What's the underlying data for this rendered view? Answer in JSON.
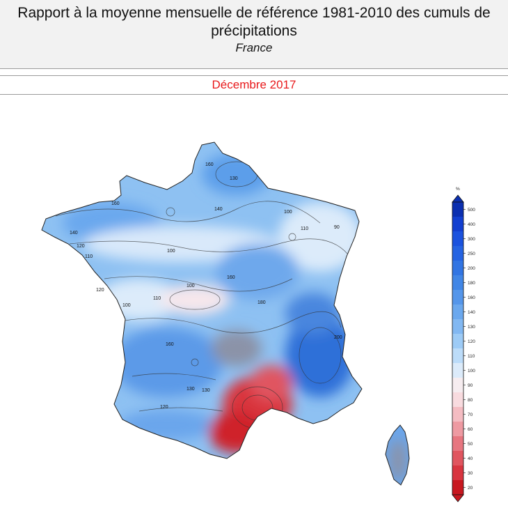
{
  "header": {
    "title": "Rapport à la moyenne mensuelle de référence 1981-2010 des cumuls de précipitations",
    "subtitle": "France"
  },
  "period": "Décembre 2017",
  "legend": {
    "unit": "%",
    "levels": [
      {
        "label": "500",
        "color": "#0b2fb0"
      },
      {
        "label": "400",
        "color": "#123fd0"
      },
      {
        "label": "300",
        "color": "#1b52de"
      },
      {
        "label": "250",
        "color": "#2563e2"
      },
      {
        "label": "200",
        "color": "#3275e3"
      },
      {
        "label": "180",
        "color": "#4186e6"
      },
      {
        "label": "160",
        "color": "#5596ea"
      },
      {
        "label": "140",
        "color": "#6ba8ee"
      },
      {
        "label": "130",
        "color": "#82b8f2"
      },
      {
        "label": "120",
        "color": "#9dcbf6"
      },
      {
        "label": "110",
        "color": "#bcdcf9"
      },
      {
        "label": "100",
        "color": "#dcebfa"
      },
      {
        "label": "90",
        "color": "#f6edf0"
      },
      {
        "label": "80",
        "color": "#f8dbdf"
      },
      {
        "label": "70",
        "color": "#f4bcc2"
      },
      {
        "label": "60",
        "color": "#ee9aa2"
      },
      {
        "label": "50",
        "color": "#e77680"
      },
      {
        "label": "40",
        "color": "#e0555f"
      },
      {
        "label": "30",
        "color": "#d83540"
      },
      {
        "label": "20",
        "color": "#c81820"
      }
    ]
  },
  "map": {
    "contour_labels": [
      "160",
      "130",
      "140",
      "110",
      "100",
      "90",
      "160",
      "140",
      "120",
      "110",
      "100",
      "100",
      "110",
      "180",
      "160",
      "120",
      "100",
      "160",
      "130",
      "120",
      "130",
      "200"
    ]
  }
}
